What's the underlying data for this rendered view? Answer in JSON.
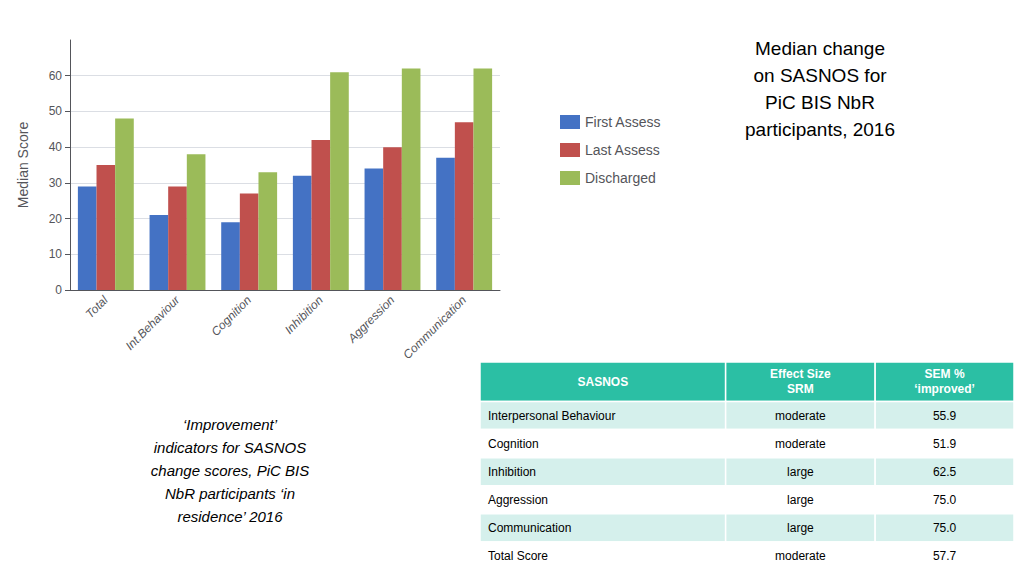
{
  "chart_data": {
    "type": "bar",
    "title": "Median change\non SASNOS for\nPiC BIS NbR\nparticipants, 2016",
    "ylabel": "Median Score",
    "categories": [
      "Total",
      "Int.Behaviour",
      "Cognition",
      "Inhibition",
      "Aggression",
      "Communication"
    ],
    "series": [
      {
        "name": "First Assess",
        "color": "#4472C4",
        "values": [
          29,
          21,
          19,
          32,
          34,
          37
        ]
      },
      {
        "name": "Last Assess",
        "color": "#C0504D",
        "values": [
          35,
          29,
          27,
          42,
          40,
          47
        ]
      },
      {
        "name": "Discharged",
        "color": "#9BBB59",
        "values": [
          48,
          38,
          33,
          61,
          62,
          62
        ]
      }
    ],
    "ylim": [
      0,
      70
    ],
    "yticks": [
      0,
      10,
      20,
      30,
      40,
      50,
      60
    ],
    "grid": true,
    "legend": "right",
    "annotations": [
      "‘Improvement’\nindicators for SASNOS\nchange scores, PiC BIS\nNbR participants ‘in\nresidence’ 2016"
    ],
    "table": {
      "header": [
        "SASNOS",
        "Effect Size\nSRM",
        "SEM %\n‘improved’"
      ],
      "rows": [
        [
          "Interpersonal Behaviour",
          "moderate",
          "55.9"
        ],
        [
          "Cognition",
          "moderate",
          "51.9"
        ],
        [
          "Inhibition",
          "large",
          "62.5"
        ],
        [
          "Aggression",
          "large",
          "75.0"
        ],
        [
          "Communication",
          "large",
          "75.0"
        ],
        [
          "Total Score",
          "moderate",
          "57.7"
        ]
      ],
      "color": "#2BBFA4",
      "colors": [
        "#D5F0EC",
        "#FFFFFF"
      ]
    }
  }
}
